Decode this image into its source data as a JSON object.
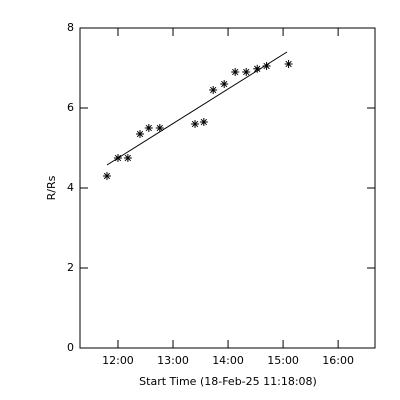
{
  "chart_data": {
    "type": "scatter",
    "xlabel": "Start Time (18-Feb-25 11:18:08)",
    "ylabel": "R/Rs",
    "x": [
      11.8,
      12.0,
      12.18,
      12.4,
      12.56,
      12.76,
      13.4,
      13.56,
      13.73,
      13.93,
      14.13,
      14.33,
      14.53,
      14.7,
      15.1
    ],
    "values": [
      4.3,
      4.75,
      4.75,
      5.35,
      5.5,
      5.5,
      5.6,
      5.65,
      6.45,
      6.6,
      6.9,
      6.9,
      6.98,
      7.05,
      7.1
    ],
    "color": "#000000",
    "fit": {
      "x": [
        11.8,
        15.07
      ],
      "y": [
        4.575,
        7.4
      ]
    },
    "xlim": [
      11.31,
      16.67
    ],
    "xticks": [
      {
        "value": 12,
        "label": "12:00"
      },
      {
        "value": 13,
        "label": "13:00"
      },
      {
        "value": 14,
        "label": "14:00"
      },
      {
        "value": 15,
        "label": "15:00"
      },
      {
        "value": 16,
        "label": "16:00"
      }
    ],
    "ylim": [
      0,
      8
    ],
    "yticks": [
      0,
      2,
      4,
      6,
      8
    ]
  }
}
